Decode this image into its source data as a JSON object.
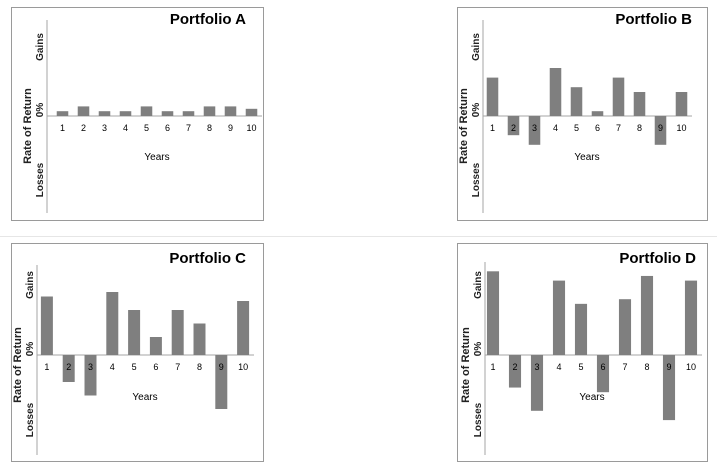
{
  "chart_data": [
    {
      "type": "bar",
      "title": "Portfolio A",
      "xlabel": "Years",
      "ylabel": "Rate of Return",
      "ytick_labels": [
        "Gains",
        "0%",
        "Losses"
      ],
      "categories": [
        "1",
        "2",
        "3",
        "4",
        "5",
        "6",
        "7",
        "8",
        "9",
        "10"
      ],
      "values": [
        1,
        2,
        1,
        1,
        2,
        1,
        1,
        2,
        2,
        1.5
      ],
      "ylim": [
        -20,
        20
      ],
      "bar_color": "#7f7f7f",
      "grid": false,
      "legend": "none"
    },
    {
      "type": "bar",
      "title": "Portfolio B",
      "xlabel": "Years",
      "ylabel": "Rate of Return",
      "ytick_labels": [
        "Gains",
        "0%",
        "Losses"
      ],
      "categories": [
        "1",
        "2",
        "3",
        "4",
        "5",
        "6",
        "7",
        "8",
        "9",
        "10"
      ],
      "values": [
        8,
        -4,
        -6,
        10,
        6,
        1,
        8,
        5,
        -6,
        5
      ],
      "ylim": [
        -20,
        20
      ],
      "bar_color": "#7f7f7f",
      "grid": false,
      "legend": "none"
    },
    {
      "type": "bar",
      "title": "Portfolio C",
      "xlabel": "Years",
      "ylabel": "Rate of Return",
      "ytick_labels": [
        "Gains",
        "0%",
        "Losses"
      ],
      "categories": [
        "1",
        "2",
        "3",
        "4",
        "5",
        "6",
        "7",
        "8",
        "9",
        "10"
      ],
      "values": [
        13,
        -6,
        -9,
        14,
        10,
        4,
        10,
        7,
        -12,
        12
      ],
      "ylim": [
        -20,
        20
      ],
      "bar_color": "#7f7f7f",
      "grid": false,
      "legend": "none"
    },
    {
      "type": "bar",
      "title": "Portfolio D",
      "xlabel": "Years",
      "ylabel": "Rate of Return",
      "ytick_labels": [
        "Gains",
        "0%",
        "Losses"
      ],
      "categories": [
        "1",
        "2",
        "3",
        "4",
        "5",
        "6",
        "7",
        "8",
        "9",
        "10"
      ],
      "values": [
        18,
        -7,
        -12,
        16,
        11,
        -8,
        12,
        17,
        -14,
        16
      ],
      "ylim": [
        -20,
        20
      ],
      "bar_color": "#7f7f7f",
      "grid": false,
      "legend": "none"
    }
  ]
}
